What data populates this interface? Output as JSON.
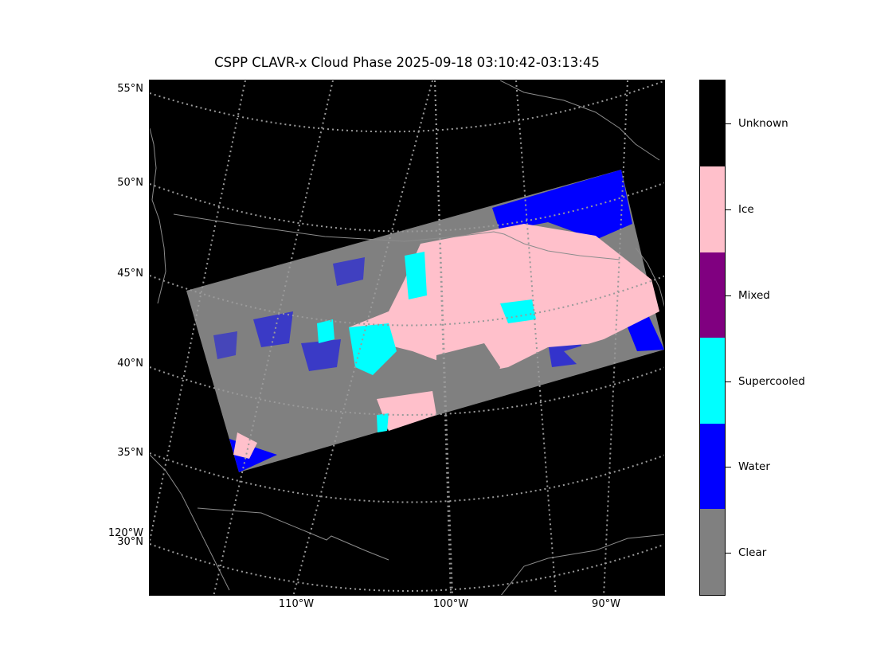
{
  "title": "CSPP CLAVR-x Cloud Phase 2025-09-18 03:10:42-03:13:45",
  "map": {
    "lat_labels": [
      "55°N",
      "50°N",
      "45°N",
      "40°N",
      "35°N",
      "30°N"
    ],
    "lon_labels_bottom": [
      "110°W",
      "100°W",
      "90°W"
    ],
    "lon_label_left": "120°W",
    "background_color": "#000000",
    "gridline_color": "#9a9a9a",
    "coastline_color": "#8c8c8c"
  },
  "legend": {
    "categories": [
      {
        "name": "Unknown",
        "color": "#000000"
      },
      {
        "name": "Ice",
        "color": "#ffc0cb"
      },
      {
        "name": "Mixed",
        "color": "#800080"
      },
      {
        "name": "Supercooled",
        "color": "#00ffff"
      },
      {
        "name": "Water",
        "color": "#0000ff"
      },
      {
        "name": "Clear",
        "color": "#808080"
      }
    ]
  }
}
